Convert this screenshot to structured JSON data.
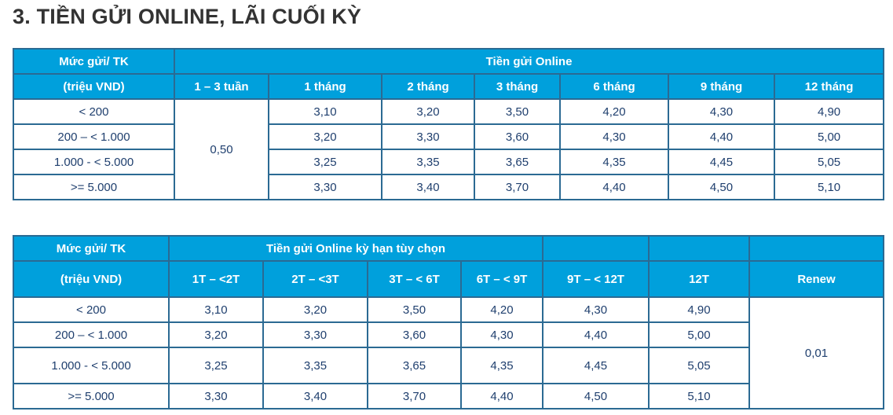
{
  "title": "3. TIỀN GỬI ONLINE, LÃI CUỐI KỲ",
  "colors": {
    "header_bg": "#00a0dc",
    "border": "#2b6a93",
    "cell_text": "#1f3f6e"
  },
  "table1": {
    "level_header_1": "Mức gửi/ TK",
    "level_header_2": "(triệu VND)",
    "group_header": "Tiền gửi Online",
    "terms": [
      "1 – 3 tuần",
      "1 tháng",
      "2 tháng",
      "3 tháng",
      "6 tháng",
      "9 tháng",
      "12 tháng"
    ],
    "short_term_rate": "0,50",
    "rows": [
      {
        "level": "< 200",
        "rates": [
          "3,10",
          "3,20",
          "3,50",
          "4,20",
          "4,30",
          "4,90"
        ]
      },
      {
        "level": "200 – < 1.000",
        "rates": [
          "3,20",
          "3,30",
          "3,60",
          "4,30",
          "4,40",
          "5,00"
        ]
      },
      {
        "level": "1.000 - < 5.000",
        "rates": [
          "3,25",
          "3,35",
          "3,65",
          "4,35",
          "4,45",
          "5,05"
        ]
      },
      {
        "level": ">= 5.000",
        "rates": [
          "3,30",
          "3,40",
          "3,70",
          "4,40",
          "4,50",
          "5,10"
        ]
      }
    ]
  },
  "table2": {
    "level_header_1": "Mức gửi/ TK",
    "level_header_2": "(triệu VND)",
    "group_header": "Tiền gửi Online kỳ hạn tùy chọn",
    "terms": [
      "1T – <2T",
      "2T – <3T",
      "3T – < 6T",
      "6T – < 9T",
      "9T – < 12T",
      "12T",
      "Renew"
    ],
    "renew_rate": "0,01",
    "rows": [
      {
        "level": "< 200",
        "rates": [
          "3,10",
          "3,20",
          "3,50",
          "4,20",
          "4,30",
          "4,90"
        ]
      },
      {
        "level": "200 – < 1.000",
        "rates": [
          "3,20",
          "3,30",
          "3,60",
          "4,30",
          "4,40",
          "5,00"
        ]
      },
      {
        "level": "1.000 - < 5.000",
        "rates": [
          "3,25",
          "3,35",
          "3,65",
          "4,35",
          "4,45",
          "5,05"
        ]
      },
      {
        "level": ">= 5.000",
        "rates": [
          "3,30",
          "3,40",
          "3,70",
          "4,40",
          "4,50",
          "5,10"
        ]
      }
    ]
  }
}
